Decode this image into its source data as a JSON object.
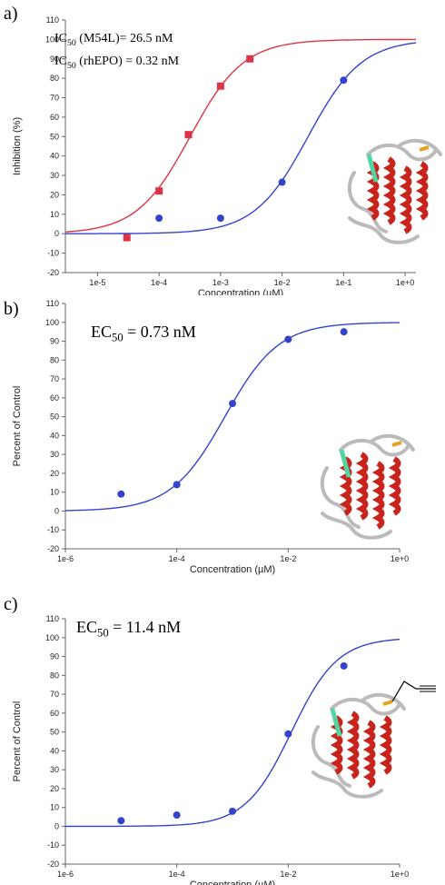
{
  "chart_data": [
    {
      "type": "scatter",
      "panel_label": "a)",
      "annotations": [
        "IC50 (M54L)= 26.5 nM",
        "IC50 (rhEPO) = 0.32 nM"
      ],
      "xlabel": "Concentration (µM)",
      "ylabel": "Inhibition (%)",
      "xscale": "log",
      "xlim": [
        3e-06,
        1.5
      ],
      "xticks": [
        "1e-5",
        "1e-4",
        "1e-3",
        "1e-2",
        "1e-1",
        "1e+0"
      ],
      "ylim": [
        -20,
        110
      ],
      "yticks": [
        -20,
        -10,
        0,
        10,
        20,
        30,
        40,
        50,
        60,
        70,
        80,
        90,
        100,
        110
      ],
      "series": [
        {
          "color": "#dd3344",
          "marker": "square",
          "points": [
            [
              3e-05,
              -2
            ],
            [
              0.0001,
              22
            ],
            [
              0.0003,
              51
            ],
            [
              0.001,
              76
            ],
            [
              0.003,
              90
            ]
          ],
          "fit": {
            "ec50": 0.00032,
            "hill": 1.0,
            "bottom": 0,
            "top": 100
          }
        },
        {
          "color": "#3344cc",
          "marker": "circle",
          "points": [
            [
              0.0001,
              8
            ],
            [
              0.001,
              8
            ],
            [
              0.01,
              26.5
            ],
            [
              0.1,
              79
            ]
          ],
          "fit": {
            "ec50": 0.0265,
            "hill": 1.0,
            "bottom": 0,
            "top": 100
          }
        }
      ]
    },
    {
      "type": "scatter",
      "panel_label": "b)",
      "annotations": [
        "EC50 = 0.73 nM"
      ],
      "xlabel": "Concentration (µM)",
      "ylabel": "Percent of Control",
      "xscale": "log",
      "xlim": [
        1e-06,
        1
      ],
      "xticks": [
        "1e-6",
        "1e-4",
        "1e-2",
        "1e+0"
      ],
      "ylim": [
        -20,
        110
      ],
      "yticks": [
        -20,
        -10,
        0,
        10,
        20,
        30,
        40,
        50,
        60,
        70,
        80,
        90,
        100,
        110
      ],
      "series": [
        {
          "color": "#3344cc",
          "marker": "circle",
          "points": [
            [
              1e-05,
              9
            ],
            [
              0.0001,
              14
            ],
            [
              0.001,
              57
            ],
            [
              0.01,
              91
            ],
            [
              0.1,
              95
            ]
          ],
          "fit": {
            "ec50": 0.00073,
            "hill": 0.9,
            "bottom": 0,
            "top": 100
          }
        }
      ]
    },
    {
      "type": "scatter",
      "panel_label": "c)",
      "annotations": [
        "EC50 = 11.4 nM"
      ],
      "xlabel": "Concentration (µM)",
      "ylabel": "Percent of Control",
      "xscale": "log",
      "xlim": [
        1e-06,
        1
      ],
      "xticks": [
        "1e-6",
        "1e-4",
        "1e-2",
        "1e+0"
      ],
      "ylim": [
        -20,
        110
      ],
      "yticks": [
        -20,
        -10,
        0,
        10,
        20,
        30,
        40,
        50,
        60,
        70,
        80,
        90,
        100,
        110
      ],
      "series": [
        {
          "color": "#3344cc",
          "marker": "circle",
          "points": [
            [
              1e-05,
              3
            ],
            [
              0.0001,
              6
            ],
            [
              0.001,
              8
            ],
            [
              0.01,
              49
            ],
            [
              0.1,
              85
            ]
          ],
          "fit": {
            "ec50": 0.0114,
            "hill": 1.05,
            "bottom": 0,
            "top": 100
          }
        }
      ]
    }
  ]
}
